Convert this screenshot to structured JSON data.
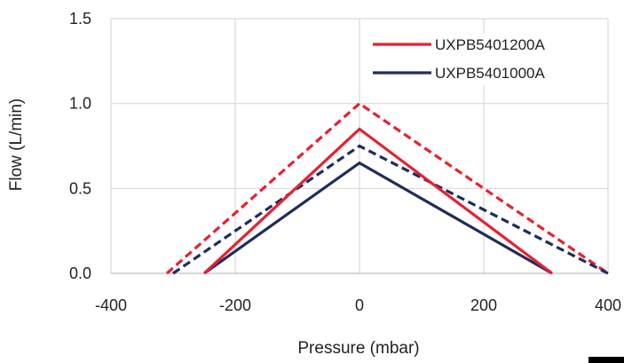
{
  "chart_data": {
    "type": "line",
    "title": "",
    "xlabel": "Pressure (mbar)",
    "ylabel": "Flow (L/min)",
    "xlim": [
      -400,
      400
    ],
    "ylim": [
      0,
      1.5
    ],
    "xticks": [
      "-400",
      "-200",
      "0",
      "200",
      "400"
    ],
    "yticks": [
      "0.0",
      "0.5",
      "1.0",
      "1.5"
    ],
    "xtick_values": [
      -400,
      -200,
      0,
      200,
      400
    ],
    "ytick_values": [
      0,
      0.5,
      1.0,
      1.5
    ],
    "grid": "both",
    "legend_position": "top-right",
    "series": [
      {
        "name": "UXPB5401200A",
        "color": "#e8202e",
        "style": "solid",
        "x": [
          -250,
          0,
          310
        ],
        "y": [
          0,
          0.85,
          0
        ]
      },
      {
        "name": "UXPB5401000A",
        "color": "#1f2d5c",
        "style": "solid",
        "x": [
          -250,
          0,
          310
        ],
        "y": [
          0,
          0.65,
          0
        ]
      },
      {
        "name": "",
        "color": "#e8202e",
        "style": "dashed",
        "x": [
          -310,
          0,
          400
        ],
        "y": [
          0,
          1.0,
          0
        ]
      },
      {
        "name": "",
        "color": "#1f2d5c",
        "style": "dashed",
        "x": [
          -300,
          0,
          400
        ],
        "y": [
          0,
          0.75,
          0
        ]
      }
    ]
  }
}
